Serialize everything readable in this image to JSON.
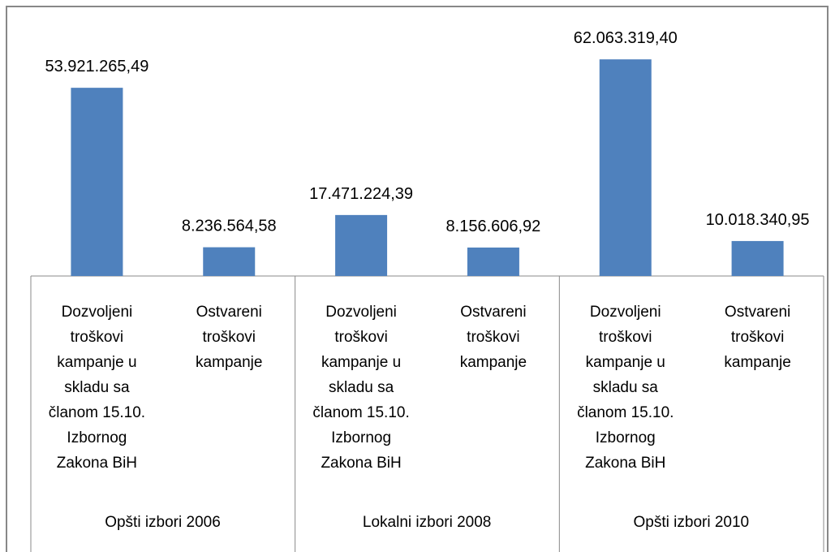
{
  "chart_data": {
    "type": "bar",
    "categories": [
      "Dozvoljeni troškovi kampanje u skladu sa članom 15.10. Izbornog Zakona BiH",
      "Ostvareni troškovi kampanje",
      "Dozvoljeni troškovi kampanje u skladu sa članom 15.10. Izbornog Zakona BiH",
      "Ostvareni troškovi kampanje",
      "Dozvoljeni troškovi kampanje u skladu sa članom 15.10. Izbornog Zakona BiH",
      "Ostvareni troškovi kampanje"
    ],
    "groups": [
      "Opšti izbori 2006",
      "Lokalni izbori 2008",
      "Opšti izbori 2010"
    ],
    "values": [
      53921265.49,
      8236564.58,
      17471224.39,
      8156606.92,
      62063319.4,
      10018340.95
    ],
    "value_labels": [
      "53.921.265,49",
      "8.236.564,58",
      "17.471.224,39",
      "8.156.606,92",
      "62.063.319,40",
      "10.018.340,95"
    ],
    "color": "#4f81bd",
    "ylim": [
      0,
      70000000
    ]
  }
}
